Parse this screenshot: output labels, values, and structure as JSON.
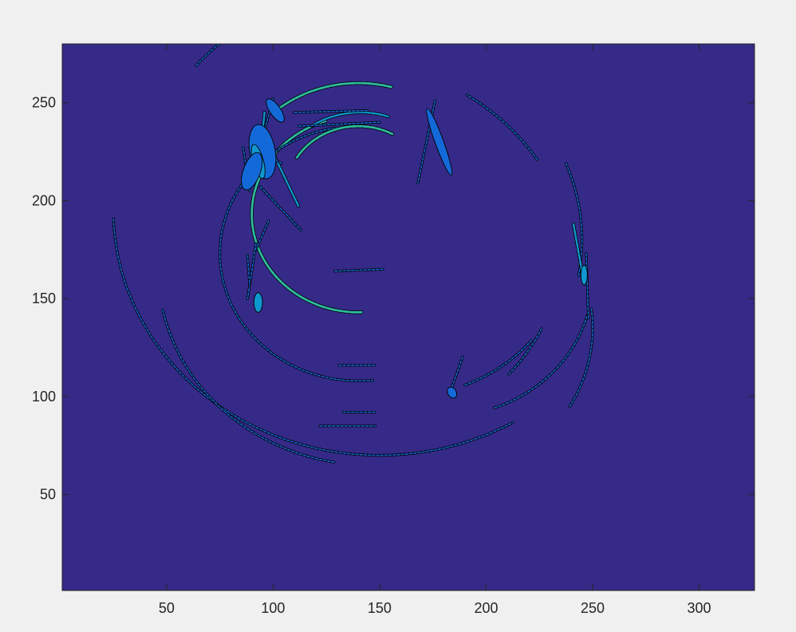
{
  "chart_data": {
    "type": "contour",
    "title": "",
    "xlabel": "",
    "ylabel": "",
    "xlim": [
      1,
      326
    ],
    "ylim": [
      1,
      280
    ],
    "xticks": [
      50,
      100,
      150,
      200,
      250,
      300
    ],
    "yticks": [
      50,
      100,
      150,
      200,
      250
    ],
    "grid": false,
    "legend": "none",
    "colors": {
      "figure_background": "#f0f0f0",
      "plot_background": "#352a87",
      "fill_low": "#1469d8",
      "fill_mid": "#0f98d0",
      "fill_high": "#2ebc9f",
      "contour_line": "#000000",
      "axis": "#262626"
    },
    "contour_features": [
      {
        "kind": "arc",
        "cx": 140,
        "cy": 193,
        "r": 50,
        "a0": 108,
        "a1": 272,
        "level": "high"
      },
      {
        "kind": "arc",
        "cx": 140,
        "cy": 173,
        "r": 65,
        "a0": 100,
        "a1": 276,
        "level": "low"
      },
      {
        "kind": "arc",
        "cx": 150,
        "cy": 195,
        "r": 125,
        "a0": 182,
        "a1": 300,
        "level": "low"
      },
      {
        "kind": "arc",
        "cx": 140,
        "cy": 204,
        "r": 34,
        "a0": 62,
        "a1": 148,
        "level": "high"
      },
      {
        "kind": "arc",
        "cx": 140,
        "cy": 200,
        "r": 60,
        "a0": 75,
        "a1": 128,
        "level": "high"
      },
      {
        "kind": "arc",
        "cx": 141,
        "cy": 203,
        "r": 42,
        "a0": 72,
        "a1": 123,
        "level": "mid"
      },
      {
        "kind": "arc",
        "cx": 148,
        "cy": 198,
        "r": 110,
        "a0": 107,
        "a1": 140,
        "level": "low"
      },
      {
        "kind": "arc",
        "cx": 150,
        "cy": 220,
        "r": 140,
        "a0": 124,
        "a1": 142,
        "level": "low"
      },
      {
        "kind": "arc",
        "cx": 146,
        "cy": 165,
        "r": 100,
        "a0": 192,
        "a1": 260,
        "level": "low"
      },
      {
        "kind": "arc",
        "cx": 180,
        "cy": 160,
        "r": 70,
        "a0": 290,
        "a1": 345,
        "level": "low"
      },
      {
        "kind": "arc",
        "cx": 140,
        "cy": 180,
        "r": 105,
        "a0": 350,
        "a1": 382,
        "level": "low"
      },
      {
        "kind": "arc",
        "cx": 170,
        "cy": 135,
        "r": 80,
        "a0": 330,
        "a1": 367,
        "level": "low"
      },
      {
        "kind": "arc",
        "cx": 140,
        "cy": 175,
        "r": 95,
        "a0": 318,
        "a1": 335,
        "level": "low"
      },
      {
        "kind": "arc",
        "cx": 160,
        "cy": 180,
        "r": 80,
        "a0": 292,
        "a1": 320,
        "level": "low"
      },
      {
        "kind": "arc",
        "cx": 130,
        "cy": 160,
        "r": 112,
        "a0": 33,
        "a1": 57,
        "level": "low"
      },
      {
        "kind": "seg",
        "x0": 129,
        "y0": 164,
        "x1": 152,
        "y1": 165,
        "level": "low"
      },
      {
        "kind": "seg",
        "x0": 131,
        "y0": 116,
        "x1": 148,
        "y1": 116,
        "level": "low"
      },
      {
        "kind": "seg",
        "x0": 133,
        "y0": 92,
        "x1": 148,
        "y1": 92,
        "level": "low"
      },
      {
        "kind": "seg",
        "x0": 122,
        "y0": 85,
        "x1": 148,
        "y1": 85,
        "level": "low"
      },
      {
        "kind": "seg",
        "x0": 89,
        "y0": 205,
        "x1": 86,
        "y1": 227,
        "level": "low"
      },
      {
        "kind": "seg",
        "x0": 94,
        "y0": 207,
        "x1": 113,
        "y1": 185,
        "level": "low"
      },
      {
        "kind": "seg",
        "x0": 92,
        "y0": 175,
        "x1": 98,
        "y1": 190,
        "level": "low"
      },
      {
        "kind": "seg",
        "x0": 96,
        "y0": 245,
        "x1": 93,
        "y1": 213,
        "level": "mid"
      },
      {
        "kind": "seg",
        "x0": 97,
        "y0": 231,
        "x1": 112,
        "y1": 197,
        "level": "mid"
      },
      {
        "kind": "seg",
        "x0": 89,
        "y0": 227,
        "x1": 104,
        "y1": 219,
        "level": "low"
      },
      {
        "kind": "seg",
        "x0": 100,
        "y0": 252,
        "x1": 90,
        "y1": 212,
        "level": "low"
      },
      {
        "kind": "seg",
        "x0": 110,
        "y0": 245,
        "x1": 145,
        "y1": 246,
        "level": "low"
      },
      {
        "kind": "seg",
        "x0": 112,
        "y0": 238,
        "x1": 150,
        "y1": 240,
        "level": "low"
      },
      {
        "kind": "seg",
        "x0": 92,
        "y0": 178,
        "x1": 88,
        "y1": 150,
        "level": "low"
      },
      {
        "kind": "seg",
        "x0": 88,
        "y0": 172,
        "x1": 89,
        "y1": 157,
        "level": "low"
      },
      {
        "kind": "seg",
        "x0": 189,
        "y0": 120,
        "x1": 184,
        "y1": 105,
        "level": "low"
      },
      {
        "kind": "seg",
        "x0": 241,
        "y0": 188,
        "x1": 246,
        "y1": 158,
        "level": "mid"
      },
      {
        "kind": "seg",
        "x0": 247,
        "y0": 173,
        "x1": 248,
        "y1": 140,
        "level": "low"
      },
      {
        "kind": "seg",
        "x0": 176,
        "y0": 251,
        "x1": 168,
        "y1": 209,
        "level": "low"
      },
      {
        "kind": "blob",
        "x": 178,
        "y": 230,
        "rx": 2,
        "ry": 18,
        "rot": 20,
        "level": "low"
      },
      {
        "kind": "blob",
        "x": 95,
        "y": 225,
        "rx": 6,
        "ry": 14,
        "rot": 10,
        "level": "low"
      },
      {
        "kind": "blob",
        "x": 93,
        "y": 220,
        "rx": 2.5,
        "ry": 9,
        "rot": 15,
        "level": "mid"
      },
      {
        "kind": "blob",
        "x": 90,
        "y": 215,
        "rx": 4,
        "ry": 10,
        "rot": -20,
        "level": "low"
      },
      {
        "kind": "blob",
        "x": 101,
        "y": 246,
        "rx": 2.5,
        "ry": 7,
        "rot": 35,
        "level": "low"
      },
      {
        "kind": "blob",
        "x": 93,
        "y": 148,
        "rx": 2,
        "ry": 5,
        "rot": 0,
        "level": "mid"
      },
      {
        "kind": "blob",
        "x": 246,
        "y": 162,
        "rx": 1.5,
        "ry": 5,
        "rot": 0,
        "level": "mid"
      },
      {
        "kind": "blob",
        "x": 184,
        "y": 102,
        "rx": 2,
        "ry": 3,
        "rot": 30,
        "level": "low"
      }
    ]
  }
}
